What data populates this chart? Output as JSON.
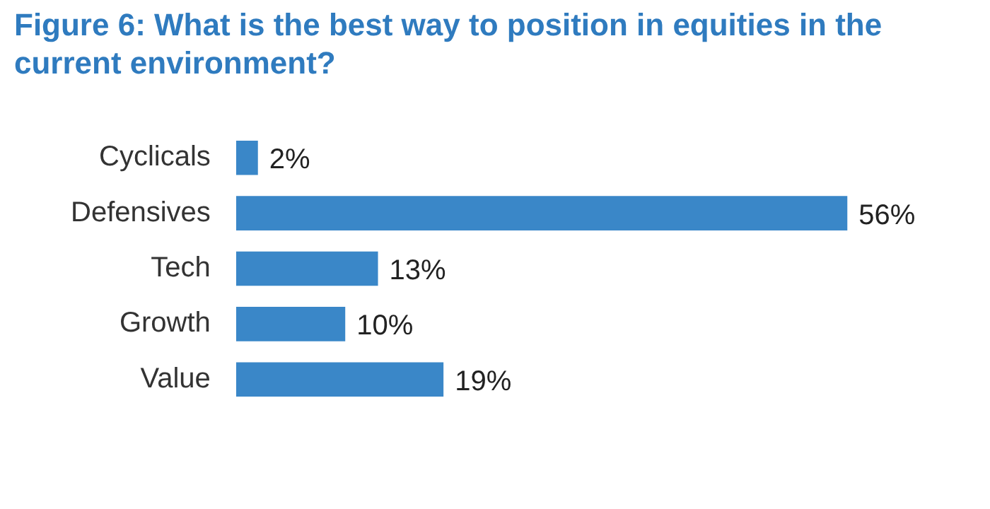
{
  "chart_data": {
    "type": "bar",
    "orientation": "horizontal",
    "title": "Figure 6: What is the best way to position in equities in the current environment?",
    "categories": [
      "Cyclicals",
      "Defensives",
      "Tech",
      "Growth",
      "Value"
    ],
    "values": [
      2,
      56,
      13,
      10,
      19
    ],
    "value_labels": [
      "2%",
      "56%",
      "13%",
      "10%",
      "19%"
    ],
    "color": "#3a87c8",
    "tick_labels": "y"
  }
}
